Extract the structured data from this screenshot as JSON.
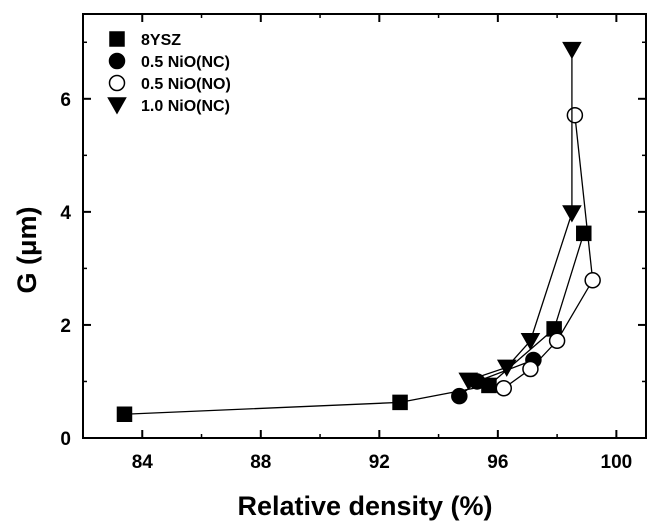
{
  "chart_data": {
    "type": "line",
    "title": "",
    "xlabel": "Relative density (%)",
    "ylabel": "G (μm)",
    "xlim": [
      82,
      101
    ],
    "ylim": [
      0,
      7.5
    ],
    "xticks": [
      84,
      88,
      92,
      96,
      100
    ],
    "yticks": [
      0,
      2,
      4,
      6
    ],
    "grid": false,
    "legend_position": "top-left",
    "series": [
      {
        "name": "8YSZ",
        "marker": "square",
        "filled": true,
        "x": [
          83.4,
          92.7,
          95.7,
          97.9,
          98.9
        ],
        "y": [
          0.42,
          0.63,
          0.93,
          1.93,
          3.62
        ]
      },
      {
        "name": "0.5 NiO(NC)",
        "marker": "circle",
        "filled": true,
        "x": [
          94.7,
          95.3,
          97.2
        ],
        "y": [
          0.74,
          1.0,
          1.38
        ]
      },
      {
        "name": "0.5 NiO(NO)",
        "marker": "circle",
        "filled": false,
        "x": [
          96.2,
          97.1,
          98.0,
          99.2,
          98.6
        ],
        "y": [
          0.88,
          1.22,
          1.72,
          2.79,
          5.71
        ]
      },
      {
        "name": "1.0 NiO(NC)",
        "marker": "triangle-down",
        "filled": true,
        "x": [
          95.0,
          96.3,
          97.1,
          98.5,
          98.5
        ],
        "y": [
          1.02,
          1.25,
          1.72,
          3.98,
          6.87
        ]
      }
    ]
  }
}
